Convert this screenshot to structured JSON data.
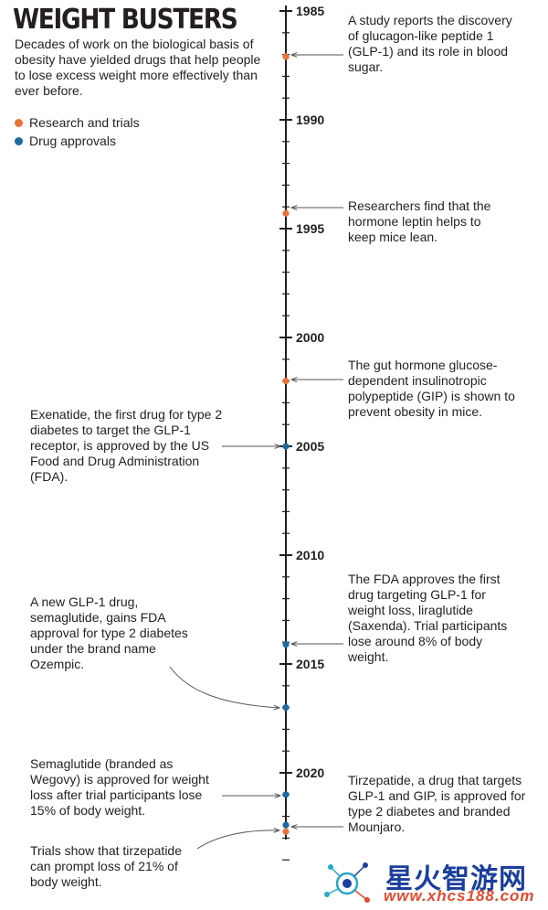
{
  "header": {
    "title": "WEIGHT BUSTERS",
    "subtitle": "Decades of work on the biological basis of obesity have yielded drugs that help people to lose excess weight more effectively than ever before."
  },
  "legend": [
    {
      "label": "Research and trials",
      "color": "#e8743b"
    },
    {
      "label": "Drug approvals",
      "color": "#1f6aa0"
    }
  ],
  "colors": {
    "research": "#e8743b",
    "approval": "#1f6aa0",
    "axis": "#231f20",
    "arrow": "#555555"
  },
  "timeline": {
    "start_year": 1985,
    "end_year": 2024,
    "labeled_years": [
      "1985",
      "1990",
      "1995",
      "2000",
      "2005",
      "2010",
      "2015",
      "2020"
    ],
    "events": [
      {
        "year": 1987.1,
        "kind": "research",
        "side": "right",
        "text": "A study reports the discovery of glucagon-like peptide 1 (GLP-1) and its role in blood sugar."
      },
      {
        "year": 1994.3,
        "kind": "research",
        "side": "right",
        "text": "Researchers find that the hormone leptin helps to keep mice lean."
      },
      {
        "year": 2002.0,
        "kind": "research",
        "side": "left-of-text",
        "text": "The gut hormone glucose-dependent insulinotropic polypeptide (GIP) is shown to prevent obesity in mice."
      },
      {
        "year": 2005.0,
        "kind": "approval",
        "side": "left",
        "text": "Exenatide, the first drug for type 2 diabetes to target the GLP-1 receptor, is approved by the US Food and Drug Administration (FDA)."
      },
      {
        "year": 2014.1,
        "kind": "approval",
        "side": "right",
        "text": "The FDA approves the first drug targeting GLP-1 for weight loss, liraglutide (Saxenda). Trial participants lose around 8% of body weight."
      },
      {
        "year": 2017.0,
        "kind": "approval",
        "side": "left",
        "text": "A new GLP-1 drug, semaglutide, gains FDA approval for type 2 diabetes under the brand name Ozempic."
      },
      {
        "year": 2021.0,
        "kind": "approval",
        "side": "left",
        "text": "Semaglutide (branded as Wegovy) is approved for weight loss after trial participants lose 15% of body weight."
      },
      {
        "year": 2022.4,
        "kind": "approval",
        "side": "right",
        "text": "Tirzepatide, a drug that targets GLP-1 and GIP, is approved for type 2 diabetes and branded Mounjaro."
      },
      {
        "year": 2022.7,
        "kind": "research",
        "side": "left",
        "text": "Trials show that tirzepatide can prompt loss of 21% of body weight."
      }
    ]
  },
  "watermark": {
    "title": "星火智游网",
    "url": "www.xhcs188.com"
  }
}
